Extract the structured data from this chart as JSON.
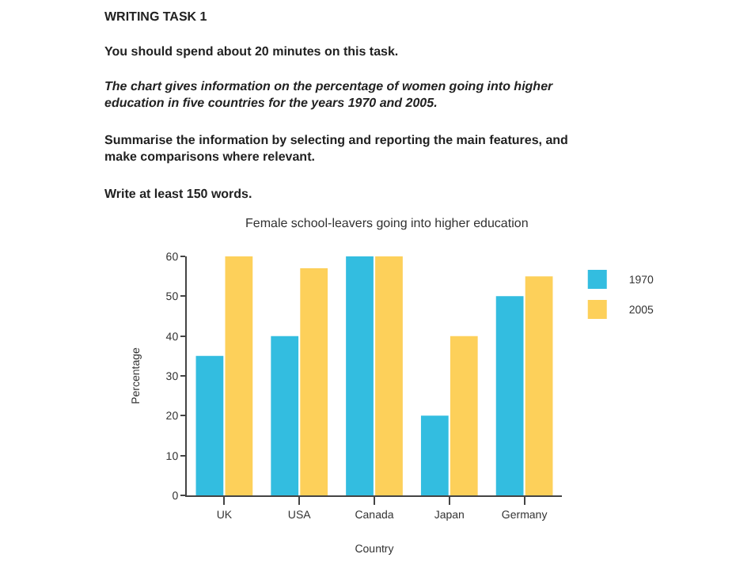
{
  "chart_data": {
    "type": "bar",
    "title": "Female school-leavers going into higher education",
    "annotations": [
      "WRITING TASK 1",
      "You should spend about 20 minutes on this task.",
      "The chart gives information on the percentage of women going into higher education in five countries for the years 1970 and 2005.",
      "Summarise the information by selecting and reporting the main features, and make comparisons where relevant.",
      "Write at least 150 words."
    ],
    "xlabel": "Country",
    "ylabel": "Percentage",
    "categories": [
      "UK",
      "USA",
      "Canada",
      "Japan",
      "Germany"
    ],
    "series": [
      {
        "name": "1970",
        "color": "#33bde0",
        "values": [
          35,
          40,
          60,
          20,
          50
        ]
      },
      {
        "name": "2005",
        "color": "#fdd05a",
        "values": [
          60,
          57,
          60,
          40,
          55
        ]
      }
    ],
    "ylim": [
      0,
      60
    ],
    "yticks": [
      0,
      10,
      20,
      30,
      40,
      50,
      60
    ],
    "legend": "top right"
  }
}
